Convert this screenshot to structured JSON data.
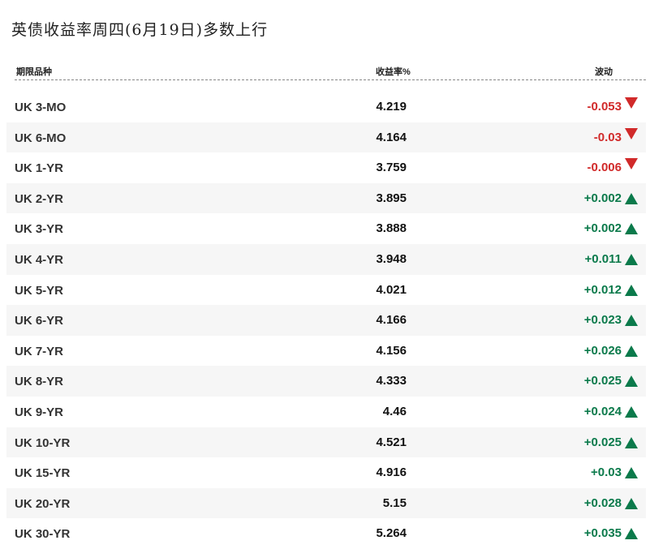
{
  "title": "英债收益率周四(6月19日)多数上行",
  "headers": {
    "term": "期限品种",
    "yield": "收益率%",
    "change": "波动"
  },
  "colors": {
    "up": "#0b7a4b",
    "down": "#d12a2a"
  },
  "rows": [
    {
      "name": "UK 3-MO",
      "yield": "4.219",
      "change": "-0.053",
      "dir": "down"
    },
    {
      "name": "UK 6-MO",
      "yield": "4.164",
      "change": "-0.03",
      "dir": "down"
    },
    {
      "name": "UK 1-YR",
      "yield": "3.759",
      "change": "-0.006",
      "dir": "down"
    },
    {
      "name": "UK 2-YR",
      "yield": "3.895",
      "change": "+0.002",
      "dir": "up"
    },
    {
      "name": "UK 3-YR",
      "yield": "3.888",
      "change": "+0.002",
      "dir": "up"
    },
    {
      "name": "UK 4-YR",
      "yield": "3.948",
      "change": "+0.011",
      "dir": "up"
    },
    {
      "name": "UK 5-YR",
      "yield": "4.021",
      "change": "+0.012",
      "dir": "up"
    },
    {
      "name": "UK 6-YR",
      "yield": "4.166",
      "change": "+0.023",
      "dir": "up"
    },
    {
      "name": "UK 7-YR",
      "yield": "4.156",
      "change": "+0.026",
      "dir": "up"
    },
    {
      "name": "UK 8-YR",
      "yield": "4.333",
      "change": "+0.025",
      "dir": "up"
    },
    {
      "name": "UK 9-YR",
      "yield": "4.46",
      "change": "+0.024",
      "dir": "up"
    },
    {
      "name": "UK 10-YR",
      "yield": "4.521",
      "change": "+0.025",
      "dir": "up"
    },
    {
      "name": "UK 15-YR",
      "yield": "4.916",
      "change": "+0.03",
      "dir": "up"
    },
    {
      "name": "UK 20-YR",
      "yield": "5.15",
      "change": "+0.028",
      "dir": "up"
    },
    {
      "name": "UK 30-YR",
      "yield": "5.264",
      "change": "+0.035",
      "dir": "up"
    }
  ]
}
